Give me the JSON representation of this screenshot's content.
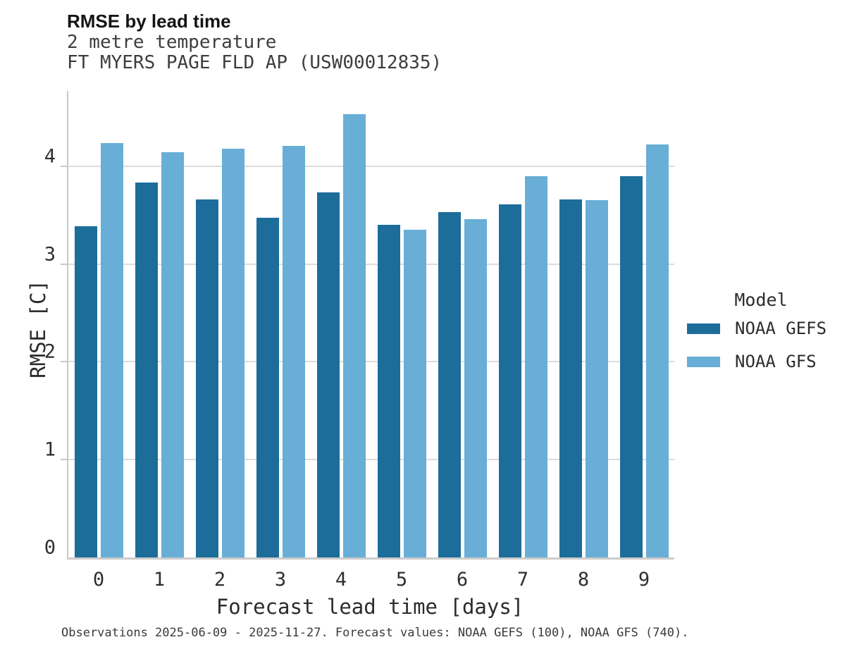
{
  "header": {
    "title": "RMSE by lead time",
    "subtitle_variable": "2 metre temperature",
    "subtitle_station": "FT MYERS PAGE FLD AP (USW00012835)"
  },
  "chart_data": {
    "type": "bar",
    "title": "RMSE by lead time",
    "subtitle": [
      "2 metre temperature",
      "FT MYERS PAGE FLD AP (USW00012835)"
    ],
    "categories": [
      "0",
      "1",
      "2",
      "3",
      "4",
      "5",
      "6",
      "7",
      "8",
      "9"
    ],
    "series": [
      {
        "name": "NOAA GEFS",
        "color": "#1d6d9b",
        "values": [
          3.39,
          3.83,
          3.66,
          3.47,
          3.73,
          3.4,
          3.53,
          3.61,
          3.66,
          3.9
        ]
      },
      {
        "name": "NOAA GFS",
        "color": "#68aed6",
        "values": [
          4.24,
          4.14,
          4.18,
          4.21,
          4.53,
          3.35,
          3.46,
          3.9,
          3.65,
          4.22
        ]
      }
    ],
    "xlabel": "Forecast lead time [days]",
    "ylabel": "RMSE [C]",
    "ylim": [
      0,
      4.77
    ],
    "yticks": [
      0,
      1,
      2,
      3,
      4
    ],
    "grid": true,
    "legend_title": "Model",
    "legend_position": "right"
  },
  "legend": {
    "title": "Model",
    "items": [
      {
        "label": "NOAA GEFS",
        "color": "#1d6d9b"
      },
      {
        "label": "NOAA GFS",
        "color": "#68aed6"
      }
    ]
  },
  "footer": {
    "text": "Observations 2025-06-09 - 2025-11-27. Forecast values: NOAA GEFS (100), NOAA GFS (740)."
  }
}
